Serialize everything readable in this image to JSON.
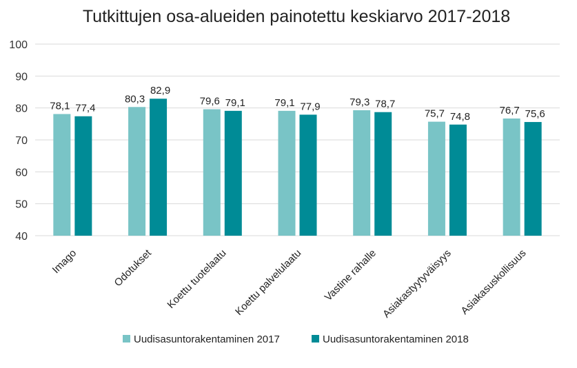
{
  "chart_data": {
    "type": "bar",
    "title": "Tutkittujen osa-alueiden painotettu keskiarvo 2017-2018",
    "xlabel": "",
    "ylabel": "",
    "ylim": [
      40,
      100
    ],
    "yticks": [
      40,
      50,
      60,
      70,
      80,
      90,
      100
    ],
    "grid": true,
    "legend_position": "bottom",
    "categories": [
      "Imago",
      "Odotukset",
      "Koettu tuotelaatu",
      "Koettu palvelulaatu",
      "Vastine rahalle",
      "Asiakastyytyväisyys",
      "Asiakasuskollisuus"
    ],
    "series": [
      {
        "name": "Uudisasuntorakentaminen 2017",
        "color": "#79c4c6",
        "values": [
          78.1,
          80.3,
          79.6,
          79.1,
          79.3,
          75.7,
          76.7
        ],
        "labels": [
          "78,1",
          "80,3",
          "79,6",
          "79,1",
          "79,3",
          "75,7",
          "76,7"
        ]
      },
      {
        "name": "Uudisasuntorakentaminen 2018",
        "color": "#008b96",
        "values": [
          77.4,
          82.9,
          79.1,
          77.9,
          78.7,
          74.8,
          75.6
        ],
        "labels": [
          "77,4",
          "82,9",
          "79,1",
          "77,9",
          "78,7",
          "74,8",
          "75,6"
        ]
      }
    ]
  }
}
